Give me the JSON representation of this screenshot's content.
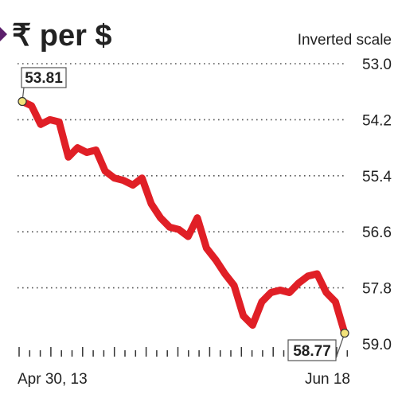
{
  "chart_data": {
    "type": "line",
    "title": "₹ per $",
    "scale_note": "Inverted scale",
    "y_inverted": true,
    "ylim": [
      53.0,
      59.0
    ],
    "yticks": [
      "53.0",
      "54.2",
      "55.4",
      "56.6",
      "57.8",
      "59.0"
    ],
    "grid": "dotted horizontal",
    "x_start_label": "Apr 30, 13",
    "x_end_label": "Jun 18",
    "start_value_label": "53.81",
    "end_value_label": "58.77",
    "colors": {
      "line": "#e01f26",
      "marker": "#f2e27a",
      "title_marker": "#5b1f6b",
      "grid": "#555555",
      "text": "#222222"
    },
    "series": [
      {
        "x": [
          "Apr 30",
          "May 1",
          "May 2",
          "May 3",
          "May 6",
          "May 7",
          "May 8",
          "May 9",
          "May 10",
          "May 13",
          "May 14",
          "May 15",
          "May 16",
          "May 17",
          "May 20",
          "May 21",
          "May 22",
          "May 23",
          "May 24",
          "May 27",
          "May 28",
          "May 29",
          "May 30",
          "May 31",
          "Jun 3",
          "Jun 4",
          "Jun 5",
          "Jun 6",
          "Jun 7",
          "Jun 10",
          "Jun 11",
          "Jun 12",
          "Jun 13",
          "Jun 14",
          "Jun 17",
          "Jun 18"
        ],
        "values": [
          53.81,
          53.9,
          54.3,
          54.2,
          54.25,
          55.0,
          54.8,
          54.9,
          54.85,
          55.3,
          55.45,
          55.5,
          55.6,
          55.45,
          56.0,
          56.3,
          56.5,
          56.55,
          56.7,
          56.3,
          56.95,
          57.2,
          57.5,
          57.75,
          58.4,
          58.6,
          58.1,
          57.9,
          57.85,
          57.9,
          57.7,
          57.55,
          57.5,
          57.9,
          58.1,
          58.77
        ]
      }
    ]
  }
}
